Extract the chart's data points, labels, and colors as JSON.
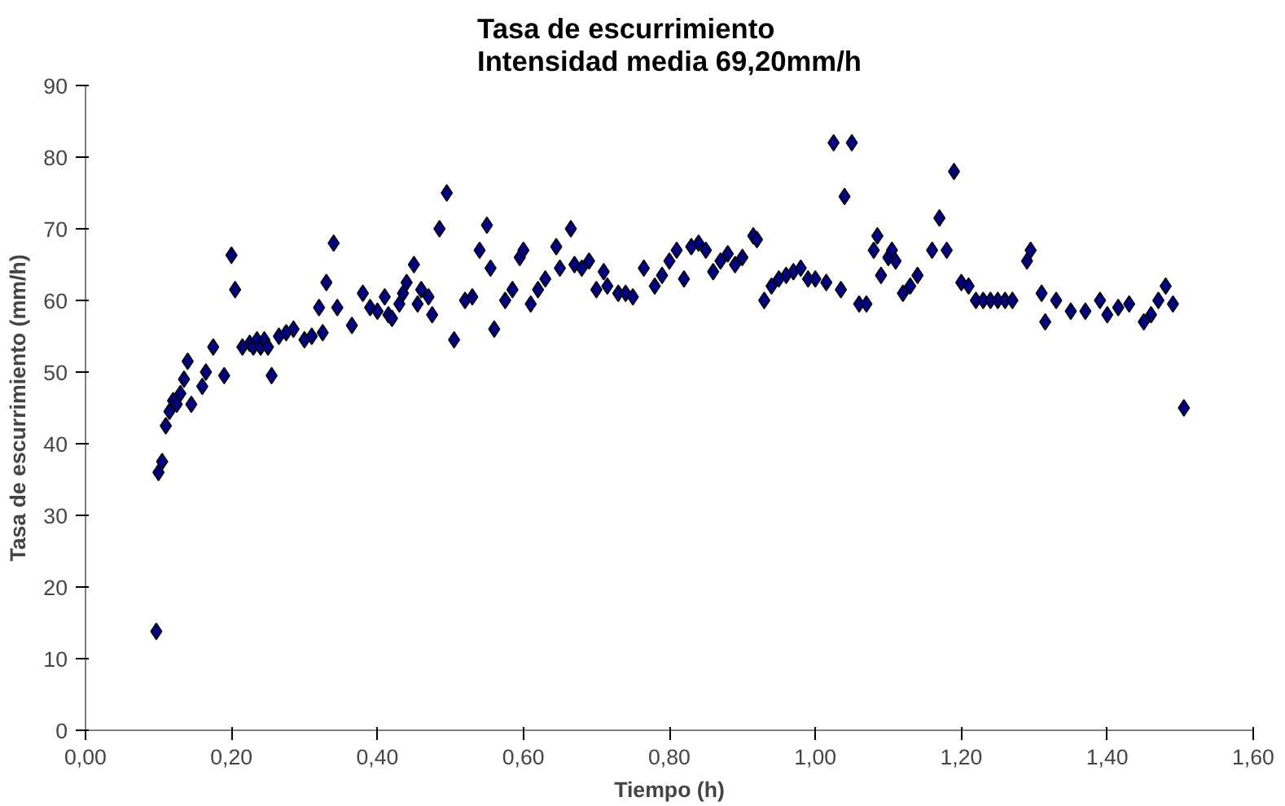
{
  "chart_data": {
    "type": "scatter",
    "title": "Tasa de escurrimiento\nIntensidad media 69,20mm/h",
    "xlabel": "Tiempo (h)",
    "ylabel": "Tasa de escurrimiento (mm/h)",
    "xlim": [
      0,
      1.6
    ],
    "xticks": [
      {
        "value": 0,
        "label": "0,00"
      },
      {
        "value": 0.2,
        "label": "0,20"
      },
      {
        "value": 0.4,
        "label": "0,40"
      },
      {
        "value": 0.6,
        "label": "0,60"
      },
      {
        "value": 0.8,
        "label": "0,80"
      },
      {
        "value": 1.0,
        "label": "1,00"
      },
      {
        "value": 1.2,
        "label": "1,20"
      },
      {
        "value": 1.4,
        "label": "1,40"
      },
      {
        "value": 1.6,
        "label": "1,60"
      }
    ],
    "ylim": [
      0,
      90
    ],
    "yticks": [
      0,
      10,
      20,
      30,
      40,
      50,
      60,
      70,
      80,
      90
    ],
    "grid": false,
    "marker": "diamond",
    "series": [
      {
        "color": "#000080",
        "x": [
          0.097,
          0.1,
          0.105,
          0.11,
          0.115,
          0.12,
          0.125,
          0.13,
          0.135,
          0.14,
          0.145,
          0.16,
          0.165,
          0.175,
          0.19,
          0.2,
          0.205,
          0.215,
          0.225,
          0.23,
          0.235,
          0.24,
          0.245,
          0.25,
          0.255,
          0.265,
          0.275,
          0.285,
          0.3,
          0.31,
          0.32,
          0.325,
          0.33,
          0.34,
          0.345,
          0.365,
          0.38,
          0.39,
          0.4,
          0.41,
          0.415,
          0.42,
          0.43,
          0.435,
          0.44,
          0.45,
          0.455,
          0.46,
          0.47,
          0.475,
          0.485,
          0.495,
          0.505,
          0.52,
          0.53,
          0.54,
          0.55,
          0.555,
          0.56,
          0.575,
          0.585,
          0.595,
          0.6,
          0.61,
          0.62,
          0.63,
          0.645,
          0.65,
          0.665,
          0.67,
          0.68,
          0.69,
          0.7,
          0.71,
          0.715,
          0.73,
          0.74,
          0.75,
          0.765,
          0.78,
          0.79,
          0.8,
          0.81,
          0.82,
          0.83,
          0.84,
          0.85,
          0.86,
          0.87,
          0.88,
          0.89,
          0.9,
          0.915,
          0.92,
          0.93,
          0.94,
          0.95,
          0.96,
          0.97,
          0.98,
          0.99,
          1.0,
          1.015,
          1.025,
          1.035,
          1.04,
          1.05,
          1.06,
          1.07,
          1.08,
          1.085,
          1.09,
          1.1,
          1.105,
          1.11,
          1.12,
          1.13,
          1.14,
          1.16,
          1.17,
          1.18,
          1.19,
          1.2,
          1.21,
          1.22,
          1.23,
          1.24,
          1.25,
          1.26,
          1.27,
          1.29,
          1.295,
          1.31,
          1.315,
          1.33,
          1.35,
          1.37,
          1.39,
          1.4,
          1.415,
          1.43,
          1.45,
          1.46,
          1.47,
          1.48,
          1.49,
          1.505
        ],
        "values": [
          13.8,
          36,
          37.5,
          42.5,
          44.5,
          46,
          45.5,
          47,
          49,
          51.5,
          45.5,
          48,
          50,
          53.5,
          49.5,
          66.3,
          61.5,
          53.5,
          54,
          53.5,
          54.5,
          53.5,
          54.5,
          53.5,
          49.5,
          55,
          55.5,
          56,
          54.5,
          55,
          59,
          55.5,
          62.5,
          68,
          59,
          56.5,
          61,
          59,
          58.5,
          60.5,
          58,
          57.5,
          59.5,
          61,
          62.5,
          65,
          59.5,
          61.5,
          60.5,
          58,
          70,
          75,
          54.5,
          60,
          60.5,
          67,
          70.5,
          64.5,
          56,
          60,
          61.5,
          66,
          67,
          59.5,
          61.5,
          63,
          67.5,
          64.5,
          70,
          65,
          64.5,
          65.5,
          61.5,
          64,
          62,
          61,
          61,
          60.5,
          64.5,
          62,
          63.5,
          65.5,
          67,
          63,
          67.5,
          68,
          67,
          64,
          65.5,
          66.5,
          65,
          66,
          69,
          68.5,
          60,
          62,
          63,
          63.5,
          64,
          64.5,
          63,
          63,
          62.5,
          82,
          61.5,
          74.5,
          82,
          59.5,
          59.5,
          67,
          69,
          63.5,
          66,
          67,
          65.5,
          61,
          62,
          63.5,
          67,
          71.5,
          67,
          78,
          62.5,
          62,
          60,
          60,
          60,
          60,
          60,
          60,
          65.5,
          67,
          61,
          57,
          60,
          58.5,
          58.5,
          60,
          58,
          59,
          59.5,
          57,
          58,
          60,
          62,
          59.5,
          45
        ]
      }
    ]
  }
}
